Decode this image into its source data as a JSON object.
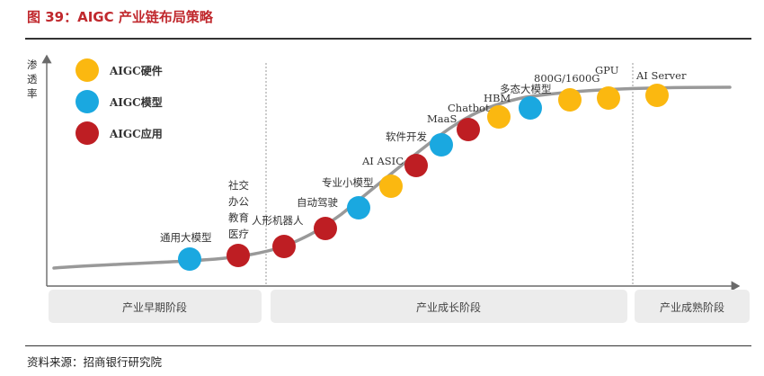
{
  "title": "图 39：AIGC 产业链布局策略",
  "y_axis_label": [
    "渗",
    "透",
    "率"
  ],
  "colors": {
    "hardware": "#fbb810",
    "model": "#1aa8e0",
    "application": "#be1e23",
    "curve": "#999999",
    "stage_bg": "#ececec",
    "title": "#c0282d"
  },
  "legend": [
    {
      "label": "AIGC硬件",
      "category": "hardware"
    },
    {
      "label": "AIGC模型",
      "category": "model"
    },
    {
      "label": "AIGC应用",
      "category": "application"
    }
  ],
  "nodes": [
    {
      "label": "通用大模型",
      "category": "model"
    },
    {
      "label": "社交 办公 教育 医疗",
      "category": "application"
    },
    {
      "label": "人形机器人",
      "category": "application"
    },
    {
      "label": "自动驾驶",
      "category": "application"
    },
    {
      "label": "专业小模型",
      "category": "model"
    },
    {
      "label": "AI ASIC",
      "category": "hardware"
    },
    {
      "label": "软件开发",
      "category": "application"
    },
    {
      "label": "MaaS",
      "category": "model"
    },
    {
      "label": "Chatbot",
      "category": "application"
    },
    {
      "label": "HBM",
      "category": "hardware"
    },
    {
      "label": "多态大模型",
      "category": "model"
    },
    {
      "label": "800G/1600G",
      "category": "hardware"
    },
    {
      "label": "GPU",
      "category": "hardware"
    },
    {
      "label": "AI Server",
      "category": "hardware"
    }
  ],
  "stages": [
    "产业早期阶段",
    "产业成长阶段",
    "产业成熟阶段"
  ],
  "source": "资料来源：招商银行研究院"
}
